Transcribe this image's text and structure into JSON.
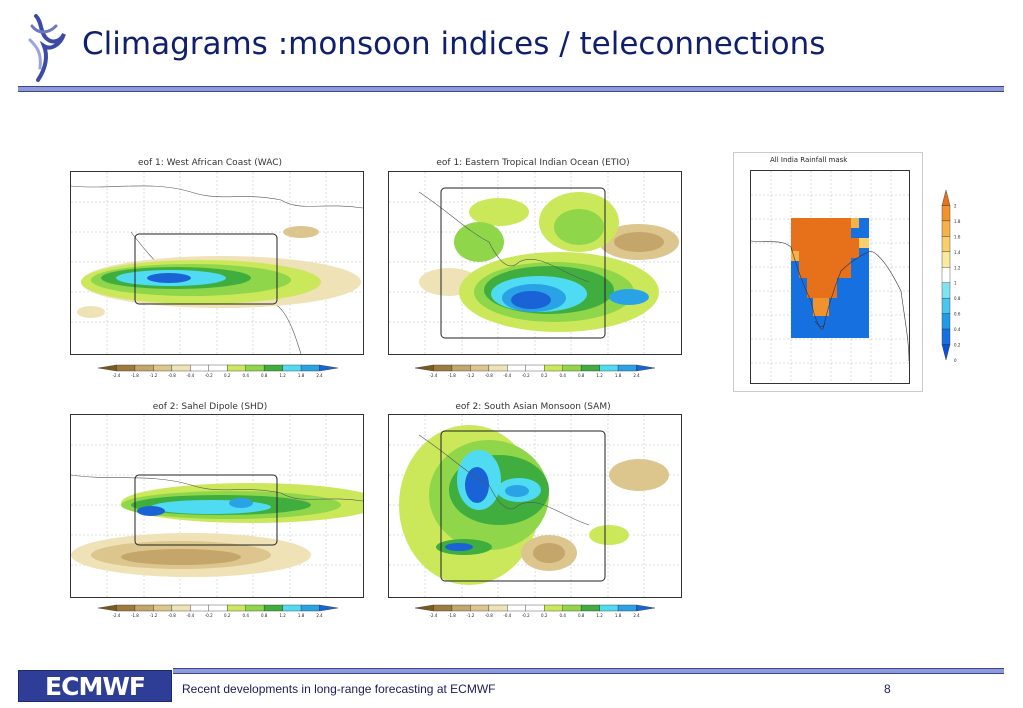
{
  "slide": {
    "title": "Climagrams :monsoon indices / teleconnections",
    "footer_text": "Recent developments in long-range forecasting at ECMWF",
    "page_number": "8",
    "logo_text": "ECMWF"
  },
  "panels": [
    {
      "title": "eof 1: West African Coast (WAC)"
    },
    {
      "title": "eof 1: Eastern Tropical Indian Ocean (ETIO)"
    },
    {
      "title": "eof 2: Sahel Dipole (SHD)"
    },
    {
      "title": "eof 2: South Asian Monsoon (SAM)"
    }
  ],
  "colorbar": {
    "labels": [
      "-2.4",
      "-1.8",
      "-1.2",
      "-0.8",
      "-0.4",
      "-0.2",
      "0.2",
      "0.4",
      "0.8",
      "1.2",
      "1.8",
      "2.4"
    ],
    "colors": [
      "#7a5a1e",
      "#a07a3c",
      "#c4a56a",
      "#dcc68e",
      "#efe2b6",
      "#ffffff",
      "#ffffff",
      "#cbe85b",
      "#8fd64a",
      "#3fae3f",
      "#4fdcf2",
      "#29a3e6",
      "#1a63d6"
    ]
  },
  "mask": {
    "title": "All India Rainfall mask",
    "colorbar_labels": [
      "2",
      "1.8",
      "1.6",
      "1.4",
      "1.2",
      "1",
      "0.8",
      "0.6",
      "0.4",
      "0.2",
      "0"
    ],
    "colorbar_colors": [
      "#e7701b",
      "#f0922e",
      "#f5b24a",
      "#f7cf6b",
      "#f8e8a0",
      "#ffffff",
      "#7fe3f2",
      "#49c6ee",
      "#1f9be8",
      "#1770e0",
      "#1050d8"
    ]
  },
  "colors": {
    "title": "#0f1f6e",
    "rule": "#8f99d6",
    "logo_bg": "#2e3d96"
  }
}
